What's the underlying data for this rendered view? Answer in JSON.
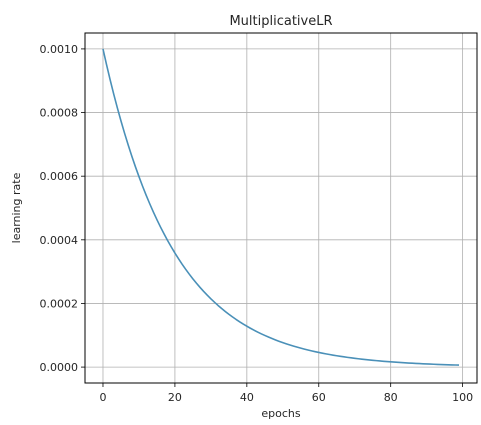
{
  "chart_data": {
    "type": "line",
    "title": "MultiplicativeLR",
    "xlabel": "epochs",
    "ylabel": "learning rate",
    "xlim": [
      -5,
      104
    ],
    "ylim": [
      -5e-05,
      0.00105
    ],
    "grid": true,
    "xticks": [
      0,
      20,
      40,
      60,
      80,
      100
    ],
    "xtick_labels": [
      "0",
      "20",
      "40",
      "60",
      "80",
      "100"
    ],
    "yticks": [
      0.0,
      0.0002,
      0.0004,
      0.0006,
      0.0008,
      0.001
    ],
    "ytick_labels": [
      "0.0000",
      "0.0002",
      "0.0004",
      "0.0006",
      "0.0008",
      "0.0010"
    ],
    "line_color": "#4a90b8",
    "series": [
      {
        "x": [
          0,
          1,
          2,
          3,
          4,
          5,
          6,
          7,
          8,
          9,
          10,
          11,
          12,
          13,
          14,
          15,
          16,
          17,
          18,
          19,
          20,
          21,
          22,
          23,
          24,
          25,
          26,
          27,
          28,
          29,
          30,
          31,
          32,
          33,
          34,
          35,
          36,
          37,
          38,
          39,
          40,
          41,
          42,
          43,
          44,
          45,
          46,
          47,
          48,
          49,
          50,
          51,
          52,
          53,
          54,
          55,
          56,
          57,
          58,
          59,
          60,
          61,
          62,
          63,
          64,
          65,
          66,
          67,
          68,
          69,
          70,
          71,
          72,
          73,
          74,
          75,
          76,
          77,
          78,
          79,
          80,
          81,
          82,
          83,
          84,
          85,
          86,
          87,
          88,
          89,
          90,
          91,
          92,
          93,
          94,
          95,
          96,
          97,
          98,
          99
        ],
        "y": [
          0.001,
          0.00095,
          0.0009025,
          0.000857375,
          0.000814506,
          0.000773781,
          0.000735092,
          0.000698337,
          0.00066342,
          0.000630249,
          0.000598737,
          0.0005688,
          0.00054036,
          0.000513342,
          0.000487675,
          0.000463291,
          0.000440127,
          0.00041812,
          0.000397214,
          0.000377354,
          0.000358486,
          0.000340562,
          0.000323534,
          0.000307357,
          0.000291989,
          0.00027739,
          0.00026352,
          0.000250344,
          0.000237827,
          0.000225936,
          0.000214639,
          0.000203907,
          0.000193711,
          0.000184026,
          0.000174825,
          0.000166083,
          0.000157779,
          0.00014989,
          0.000142396,
          0.000135276,
          0.000128512,
          0.000122087,
          0.000115982,
          0.000110183,
          0.000104674,
          9.94403e-05,
          9.44682e-05,
          8.97448e-05,
          8.52576e-05,
          8.09947e-05,
          7.6945e-05,
          7.30977e-05,
          6.94428e-05,
          6.59707e-05,
          6.26722e-05,
          5.95386e-05,
          5.65616e-05,
          5.37335e-05,
          5.10469e-05,
          4.84945e-05,
          4.60698e-05,
          4.37663e-05,
          4.1578e-05,
          3.94991e-05,
          3.75241e-05,
          3.56479e-05,
          3.38655e-05,
          3.21723e-05,
          3.05636e-05,
          2.90355e-05,
          2.75837e-05,
          2.62045e-05,
          2.48943e-05,
          2.36496e-05,
          2.24671e-05,
          2.13437e-05,
          2.02766e-05,
          1.92627e-05,
          1.82996e-05,
          1.73846e-05,
          1.65154e-05,
          1.56896e-05,
          1.49051e-05,
          1.41599e-05,
          1.34519e-05,
          1.27793e-05,
          1.21403e-05,
          1.15333e-05,
          1.09566e-05,
          1.04088e-05,
          9.88836e-06,
          9.39394e-06,
          8.92424e-06,
          8.47803e-06,
          8.05413e-06,
          7.65142e-06,
          7.26885e-06,
          6.90541e-06,
          6.56014e-06,
          6.23213e-06
        ]
      }
    ]
  }
}
